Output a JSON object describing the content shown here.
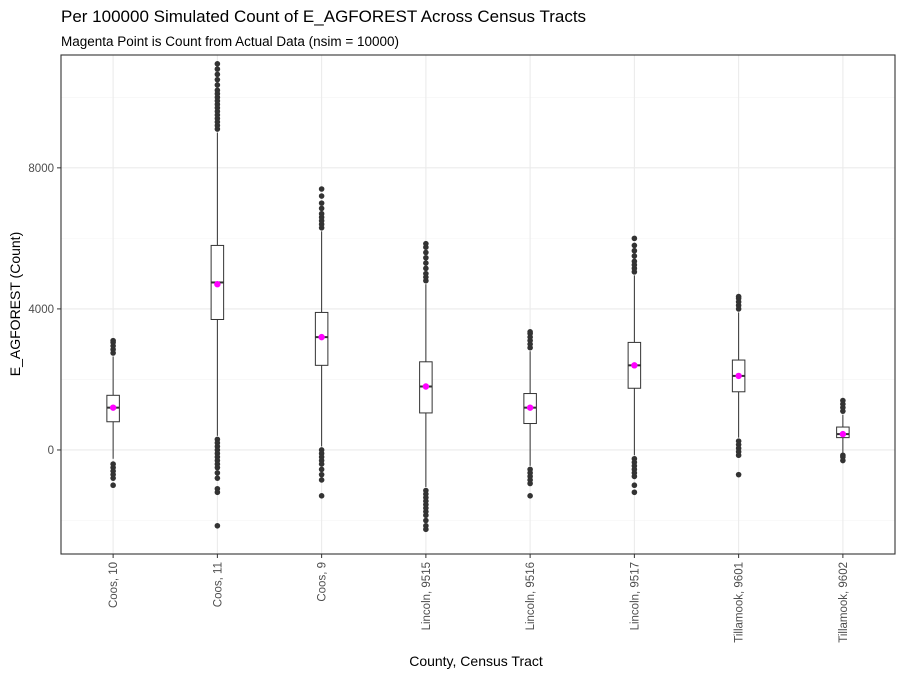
{
  "chart_data": {
    "type": "boxplot",
    "title": "Per 100000 Simulated Count of E_AGFOREST Across Census Tracts",
    "subtitle": "Magenta Point is Count from Actual Data (nsim = 10000)",
    "xlabel": "County, Census Tract",
    "ylabel": "E_AGFOREST (Count)",
    "ylim": [
      -2950,
      11200
    ],
    "yticks": [
      0,
      4000,
      8000
    ],
    "grid": true,
    "categories": [
      "Coos, 10",
      "Coos, 11",
      "Coos, 9",
      "Lincoln, 9515",
      "Lincoln, 9516",
      "Lincoln, 9517",
      "Tillamook, 9601",
      "Tillamook, 9602"
    ],
    "boxes": [
      {
        "q1": 800,
        "median": 1200,
        "q3": 1550,
        "whisker_low": -250,
        "whisker_high": 2650,
        "outliers_low": [
          -400,
          -500,
          -600,
          -700,
          -800,
          -1000
        ],
        "outliers_high": [
          2750,
          2850,
          2950,
          3050,
          3100
        ],
        "actual": 1200
      },
      {
        "q1": 3700,
        "median": 4750,
        "q3": 5800,
        "whisker_low": 400,
        "whisker_high": 9000,
        "outliers_low": [
          300,
          200,
          100,
          0,
          -100,
          -200,
          -300,
          -400,
          -500,
          -650,
          -800,
          -1100,
          -1200,
          -2150
        ],
        "outliers_high": [
          9100,
          9200,
          9300,
          9400,
          9500,
          9600,
          9700,
          9800,
          9900,
          10000,
          10100,
          10200,
          10350,
          10500,
          10650,
          10800,
          10950
        ],
        "actual": 4700
      },
      {
        "q1": 2400,
        "median": 3200,
        "q3": 3900,
        "whisker_low": 100,
        "whisker_high": 6200,
        "outliers_low": [
          0,
          -100,
          -200,
          -300,
          -400,
          -550,
          -700,
          -850,
          -1300
        ],
        "outliers_high": [
          6300,
          6400,
          6500,
          6600,
          6700,
          6850,
          7000,
          7200,
          7400
        ],
        "actual": 3200
      },
      {
        "q1": 1050,
        "median": 1800,
        "q3": 2500,
        "whisker_low": -1050,
        "whisker_high": 4700,
        "outliers_low": [
          -1150,
          -1250,
          -1350,
          -1450,
          -1550,
          -1650,
          -1750,
          -1850,
          -2000,
          -2150,
          -2250
        ],
        "outliers_high": [
          4800,
          4900,
          5000,
          5150,
          5300,
          5450,
          5600,
          5750,
          5850
        ],
        "actual": 1800
      },
      {
        "q1": 750,
        "median": 1200,
        "q3": 1600,
        "whisker_low": -450,
        "whisker_high": 2800,
        "outliers_low": [
          -550,
          -650,
          -750,
          -850,
          -950,
          -1300
        ],
        "outliers_high": [
          2900,
          3000,
          3100,
          3200,
          3300,
          3350
        ],
        "actual": 1200
      },
      {
        "q1": 1750,
        "median": 2400,
        "q3": 3050,
        "whisker_low": -150,
        "whisker_high": 4950,
        "outliers_low": [
          -250,
          -350,
          -450,
          -550,
          -650,
          -750,
          -1000,
          -1200
        ],
        "outliers_high": [
          5050,
          5150,
          5250,
          5350,
          5500,
          5650,
          5800,
          6000
        ],
        "actual": 2400
      },
      {
        "q1": 1650,
        "median": 2100,
        "q3": 2550,
        "whisker_low": 350,
        "whisker_high": 3900,
        "outliers_low": [
          250,
          150,
          50,
          -50,
          -150,
          -700
        ],
        "outliers_high": [
          4000,
          4100,
          4200,
          4300,
          4350
        ],
        "actual": 2100
      },
      {
        "q1": 350,
        "median": 450,
        "q3": 650,
        "whisker_low": -100,
        "whisker_high": 1000,
        "outliers_low": [
          -150,
          -200,
          -300
        ],
        "outliers_high": [
          1100,
          1200,
          1300,
          1400
        ],
        "actual": 450
      }
    ],
    "colors": {
      "box_line": "#333333",
      "outlier": "#333333",
      "actual_point": "#ff00ff",
      "panel_bg": "#ffffff",
      "grid": "#ebebeb"
    }
  }
}
